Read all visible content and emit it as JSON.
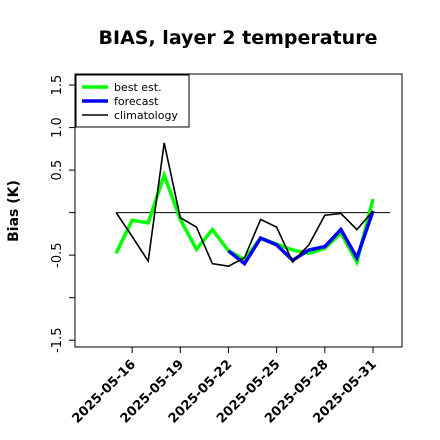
{
  "chart_data": {
    "type": "line",
    "title": "BIAS, layer 2 temperature",
    "xlabel": "",
    "ylabel": "Bias (K)",
    "x": [
      "2025-05-15",
      "2025-05-16",
      "2025-05-17",
      "2025-05-18",
      "2025-05-19",
      "2025-05-20",
      "2025-05-21",
      "2025-05-22",
      "2025-05-23",
      "2025-05-24",
      "2025-05-25",
      "2025-05-26",
      "2025-05-27",
      "2025-05-28",
      "2025-05-29",
      "2025-05-30",
      "2025-05-31"
    ],
    "xticks": [
      "2025-05-16",
      "2025-05-19",
      "2025-05-22",
      "2025-05-25",
      "2025-05-28",
      "2025-05-31"
    ],
    "highlighted_tick": "2025-05-22",
    "yticks": [
      -1.5,
      -1.0,
      -0.5,
      0.0,
      0.5,
      1.0,
      1.5
    ],
    "ytick_labels": [
      "-1.5",
      "",
      "-0.5",
      "",
      "0.5",
      "1.0",
      "1.5"
    ],
    "ylim": [
      -1.58,
      1.63
    ],
    "xlim": [
      "2025-05-14",
      "2025-05-31"
    ],
    "reference_line": 0.0,
    "legend_position": "top-left",
    "series": [
      {
        "name": "best est.",
        "color": "#00ff00",
        "values": [
          -0.48,
          -0.09,
          -0.12,
          0.44,
          -0.08,
          -0.43,
          -0.2,
          -0.45,
          -0.55,
          -0.3,
          -0.37,
          -0.44,
          -0.48,
          -0.42,
          -0.24,
          -0.58,
          0.16
        ]
      },
      {
        "name": "forecast",
        "color": "#0000ff",
        "values": [
          null,
          null,
          null,
          null,
          null,
          null,
          null,
          -0.45,
          -0.6,
          -0.3,
          -0.38,
          -0.56,
          -0.44,
          -0.4,
          -0.2,
          -0.53,
          0.02
        ]
      },
      {
        "name": "climatology",
        "color": "#000000",
        "values": [
          0.0,
          -0.28,
          -0.57,
          0.82,
          -0.06,
          -0.17,
          -0.6,
          -0.63,
          -0.53,
          -0.08,
          -0.17,
          -0.58,
          -0.38,
          -0.03,
          -0.01,
          -0.2,
          0.02
        ]
      }
    ]
  },
  "colors": {
    "highlight_tick": "#228b22",
    "axis": "#000000",
    "reference_line": "#000000"
  }
}
